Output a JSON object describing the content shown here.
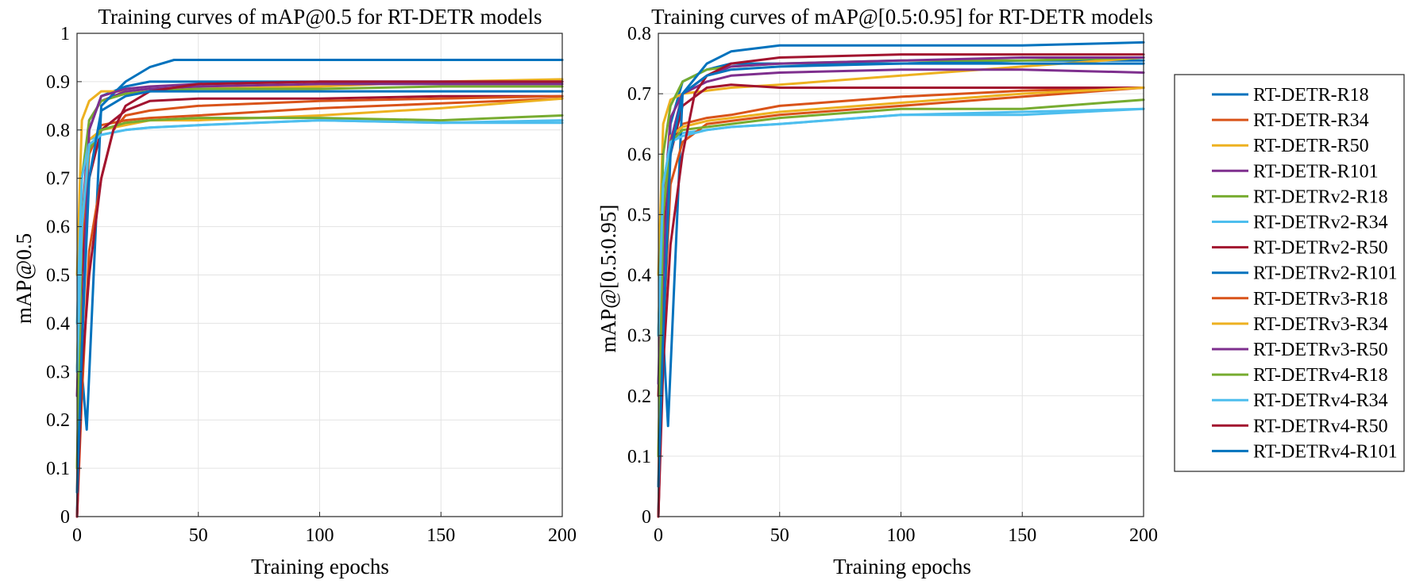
{
  "chart_data": [
    {
      "type": "line",
      "title": "Training curves of mAP@0.5 for RT-DETR models",
      "xlabel": "Training epochs",
      "ylabel": "mAP@0.5",
      "xlim": [
        0,
        200
      ],
      "ylim": [
        0,
        1
      ],
      "xticks": [
        "0",
        "50",
        "100",
        "150",
        "200"
      ],
      "yticks": [
        "0",
        "0.1",
        "0.2",
        "0.3",
        "0.4",
        "0.5",
        "0.6",
        "0.7",
        "0.8",
        "0.9",
        "1"
      ],
      "xtick_values": [
        0,
        50,
        100,
        150,
        200
      ],
      "ytick_values": [
        0,
        0.1,
        0.2,
        0.3,
        0.4,
        0.5,
        0.6,
        0.7,
        0.8,
        0.9,
        1.0
      ],
      "grid": true,
      "series": [
        {
          "name": "RT-DETR-R18",
          "color": "#0072BD",
          "x": [
            0,
            2,
            5,
            10,
            20,
            30,
            40,
            50,
            100,
            150,
            200
          ],
          "y": [
            0.0,
            0.5,
            0.8,
            0.87,
            0.89,
            0.9,
            0.9,
            0.9,
            0.9,
            0.9,
            0.9
          ]
        },
        {
          "name": "RT-DETR-R34",
          "color": "#D95319",
          "x": [
            0,
            2,
            5,
            10,
            20,
            30,
            50,
            100,
            150,
            200
          ],
          "y": [
            0.05,
            0.55,
            0.75,
            0.81,
            0.82,
            0.825,
            0.83,
            0.845,
            0.855,
            0.865
          ]
        },
        {
          "name": "RT-DETR-R50",
          "color": "#EDB120",
          "x": [
            0,
            2,
            5,
            10,
            20,
            30,
            50,
            100,
            150,
            200
          ],
          "y": [
            0.5,
            0.82,
            0.86,
            0.88,
            0.88,
            0.885,
            0.885,
            0.89,
            0.9,
            0.905
          ]
        },
        {
          "name": "RT-DETR-R101",
          "color": "#7E2F8E",
          "x": [
            0,
            2,
            5,
            10,
            20,
            30,
            50,
            100,
            150,
            200
          ],
          "y": [
            0.25,
            0.6,
            0.82,
            0.86,
            0.88,
            0.885,
            0.89,
            0.895,
            0.895,
            0.895
          ]
        },
        {
          "name": "RT-DETRv2-R18",
          "color": "#77AC30",
          "x": [
            0,
            2,
            5,
            10,
            20,
            30,
            50,
            100,
            150,
            200
          ],
          "y": [
            0.3,
            0.7,
            0.82,
            0.86,
            0.875,
            0.88,
            0.885,
            0.885,
            0.89,
            0.89
          ]
        },
        {
          "name": "RT-DETRv2-R34",
          "color": "#4DBEEE",
          "x": [
            0,
            2,
            5,
            10,
            20,
            30,
            50,
            100,
            150,
            200
          ],
          "y": [
            0.4,
            0.7,
            0.78,
            0.79,
            0.8,
            0.805,
            0.81,
            0.82,
            0.815,
            0.82
          ]
        },
        {
          "name": "RT-DETRv2-R50",
          "color": "#A2142F",
          "x": [
            0,
            2,
            5,
            10,
            20,
            30,
            50,
            100,
            150,
            200
          ],
          "y": [
            0.3,
            0.5,
            0.7,
            0.8,
            0.84,
            0.86,
            0.865,
            0.865,
            0.87,
            0.87
          ]
        },
        {
          "name": "RT-DETRv2-R101",
          "color": "#0072BD",
          "x": [
            0,
            2,
            4,
            10,
            20,
            30,
            40,
            50,
            100,
            150,
            200
          ],
          "y": [
            0.0,
            0.3,
            0.18,
            0.85,
            0.9,
            0.93,
            0.945,
            0.945,
            0.945,
            0.945,
            0.945
          ]
        },
        {
          "name": "RT-DETRv3-R18",
          "color": "#D95319",
          "x": [
            0,
            2,
            5,
            10,
            15,
            20,
            30,
            50,
            100,
            150,
            200
          ],
          "y": [
            0.0,
            0.25,
            0.55,
            0.7,
            0.8,
            0.83,
            0.84,
            0.85,
            0.86,
            0.865,
            0.87
          ]
        },
        {
          "name": "RT-DETRv3-R34",
          "color": "#EDB120",
          "x": [
            0,
            2,
            5,
            10,
            20,
            30,
            50,
            100,
            150,
            200
          ],
          "y": [
            0.1,
            0.6,
            0.78,
            0.8,
            0.81,
            0.82,
            0.82,
            0.83,
            0.845,
            0.865
          ]
        },
        {
          "name": "RT-DETRv3-R50",
          "color": "#7E2F8E",
          "x": [
            0,
            2,
            5,
            10,
            20,
            30,
            50,
            100,
            150,
            200
          ],
          "y": [
            0.25,
            0.35,
            0.8,
            0.87,
            0.885,
            0.89,
            0.895,
            0.9,
            0.9,
            0.9
          ]
        },
        {
          "name": "RT-DETRv4-R18",
          "color": "#77AC30",
          "x": [
            0,
            2,
            5,
            10,
            20,
            30,
            50,
            100,
            150,
            200
          ],
          "y": [
            0.1,
            0.6,
            0.76,
            0.8,
            0.815,
            0.82,
            0.825,
            0.825,
            0.82,
            0.83
          ]
        },
        {
          "name": "RT-DETRv4-R34",
          "color": "#4DBEEE",
          "x": [
            0,
            2,
            5,
            10,
            20,
            30,
            50,
            100,
            150,
            200
          ],
          "y": [
            0.3,
            0.6,
            0.77,
            0.79,
            0.8,
            0.805,
            0.81,
            0.82,
            0.815,
            0.815
          ]
        },
        {
          "name": "RT-DETRv4-R50",
          "color": "#A2142F",
          "x": [
            0,
            2,
            5,
            10,
            15,
            20,
            30,
            50,
            100,
            150,
            200
          ],
          "y": [
            0.0,
            0.3,
            0.5,
            0.7,
            0.8,
            0.85,
            0.88,
            0.895,
            0.9,
            0.9,
            0.9
          ]
        },
        {
          "name": "RT-DETRv4-R101",
          "color": "#0072BD",
          "x": [
            0,
            2,
            5,
            10,
            20,
            30,
            50,
            100,
            150,
            200
          ],
          "y": [
            0.05,
            0.35,
            0.7,
            0.84,
            0.87,
            0.88,
            0.88,
            0.88,
            0.88,
            0.88
          ]
        }
      ]
    },
    {
      "type": "line",
      "title": "Training curves of mAP@[0.5:0.95] for RT-DETR models",
      "xlabel": "Training epochs",
      "ylabel": "mAP@[0.5:0.95]",
      "xlim": [
        0,
        200
      ],
      "ylim": [
        0,
        0.8
      ],
      "xticks": [
        "0",
        "50",
        "100",
        "150",
        "200"
      ],
      "yticks": [
        "0",
        "0.1",
        "0.2",
        "0.3",
        "0.4",
        "0.5",
        "0.6",
        "0.7",
        "0.8"
      ],
      "xtick_values": [
        0,
        50,
        100,
        150,
        200
      ],
      "ytick_values": [
        0,
        0.1,
        0.2,
        0.3,
        0.4,
        0.5,
        0.6,
        0.7,
        0.8
      ],
      "grid": true,
      "series": [
        {
          "name": "RT-DETR-R18",
          "color": "#0072BD",
          "x": [
            0,
            2,
            5,
            10,
            20,
            30,
            50,
            100,
            150,
            200
          ],
          "y": [
            0.0,
            0.4,
            0.65,
            0.72,
            0.74,
            0.75,
            0.75,
            0.75,
            0.755,
            0.755
          ]
        },
        {
          "name": "RT-DETR-R34",
          "color": "#D95319",
          "x": [
            0,
            2,
            5,
            10,
            20,
            30,
            50,
            100,
            150,
            200
          ],
          "y": [
            0.05,
            0.45,
            0.62,
            0.65,
            0.66,
            0.665,
            0.68,
            0.695,
            0.705,
            0.71
          ]
        },
        {
          "name": "RT-DETR-R50",
          "color": "#EDB120",
          "x": [
            0,
            2,
            5,
            10,
            20,
            30,
            50,
            100,
            150,
            200
          ],
          "y": [
            0.4,
            0.65,
            0.69,
            0.7,
            0.705,
            0.71,
            0.715,
            0.73,
            0.745,
            0.76
          ]
        },
        {
          "name": "RT-DETR-R101",
          "color": "#7E2F8E",
          "x": [
            0,
            2,
            5,
            10,
            20,
            30,
            50,
            100,
            150,
            200
          ],
          "y": [
            0.22,
            0.5,
            0.66,
            0.7,
            0.72,
            0.73,
            0.735,
            0.74,
            0.74,
            0.735
          ]
        },
        {
          "name": "RT-DETRv2-R18",
          "color": "#77AC30",
          "x": [
            0,
            2,
            5,
            10,
            20,
            30,
            50,
            100,
            150,
            200
          ],
          "y": [
            0.3,
            0.6,
            0.68,
            0.72,
            0.74,
            0.745,
            0.75,
            0.755,
            0.755,
            0.76
          ]
        },
        {
          "name": "RT-DETRv2-R34",
          "color": "#4DBEEE",
          "x": [
            0,
            2,
            5,
            10,
            20,
            30,
            50,
            100,
            150,
            200
          ],
          "y": [
            0.3,
            0.55,
            0.62,
            0.635,
            0.64,
            0.645,
            0.65,
            0.665,
            0.665,
            0.675
          ]
        },
        {
          "name": "RT-DETRv2-R50",
          "color": "#A2142F",
          "x": [
            0,
            2,
            5,
            10,
            20,
            30,
            50,
            100,
            150,
            200
          ],
          "y": [
            0.2,
            0.45,
            0.6,
            0.68,
            0.71,
            0.715,
            0.71,
            0.71,
            0.71,
            0.71
          ]
        },
        {
          "name": "RT-DETRv2-R101",
          "color": "#0072BD",
          "x": [
            0,
            2,
            4,
            10,
            20,
            30,
            40,
            50,
            100,
            150,
            200
          ],
          "y": [
            0.0,
            0.3,
            0.15,
            0.7,
            0.75,
            0.77,
            0.775,
            0.78,
            0.78,
            0.78,
            0.785
          ]
        },
        {
          "name": "RT-DETRv3-R18",
          "color": "#D95319",
          "x": [
            0,
            2,
            5,
            10,
            20,
            30,
            50,
            100,
            150,
            200
          ],
          "y": [
            0.0,
            0.3,
            0.55,
            0.62,
            0.65,
            0.655,
            0.665,
            0.68,
            0.695,
            0.71
          ]
        },
        {
          "name": "RT-DETRv3-R34",
          "color": "#EDB120",
          "x": [
            0,
            2,
            5,
            10,
            20,
            30,
            50,
            100,
            150,
            200
          ],
          "y": [
            0.1,
            0.5,
            0.63,
            0.645,
            0.655,
            0.66,
            0.67,
            0.685,
            0.7,
            0.71
          ]
        },
        {
          "name": "RT-DETRv3-R50",
          "color": "#7E2F8E",
          "x": [
            0,
            2,
            5,
            10,
            20,
            30,
            50,
            100,
            150,
            200
          ],
          "y": [
            0.22,
            0.4,
            0.62,
            0.7,
            0.73,
            0.745,
            0.75,
            0.755,
            0.76,
            0.76
          ]
        },
        {
          "name": "RT-DETRv4-R18",
          "color": "#77AC30",
          "x": [
            0,
            2,
            5,
            10,
            20,
            30,
            50,
            100,
            150,
            200
          ],
          "y": [
            0.1,
            0.5,
            0.62,
            0.64,
            0.645,
            0.65,
            0.66,
            0.675,
            0.675,
            0.69
          ]
        },
        {
          "name": "RT-DETRv4-R34",
          "color": "#4DBEEE",
          "x": [
            0,
            2,
            5,
            10,
            20,
            30,
            50,
            100,
            150,
            200
          ],
          "y": [
            0.3,
            0.55,
            0.62,
            0.63,
            0.64,
            0.645,
            0.65,
            0.665,
            0.67,
            0.675
          ]
        },
        {
          "name": "RT-DETRv4-R50",
          "color": "#A2142F",
          "x": [
            0,
            2,
            5,
            10,
            15,
            20,
            30,
            50,
            100,
            150,
            200
          ],
          "y": [
            0.0,
            0.25,
            0.45,
            0.6,
            0.7,
            0.73,
            0.75,
            0.76,
            0.765,
            0.765,
            0.765
          ]
        },
        {
          "name": "RT-DETRv4-R101",
          "color": "#0072BD",
          "x": [
            0,
            2,
            5,
            10,
            20,
            30,
            50,
            100,
            150,
            200
          ],
          "y": [
            0.05,
            0.3,
            0.6,
            0.7,
            0.73,
            0.74,
            0.745,
            0.75,
            0.75,
            0.75
          ]
        }
      ]
    }
  ],
  "legend": {
    "placement": "right",
    "entries": [
      "RT-DETR-R18",
      "RT-DETR-R34",
      "RT-DETR-R50",
      "RT-DETR-R101",
      "RT-DETRv2-R18",
      "RT-DETRv2-R34",
      "RT-DETRv2-R50",
      "RT-DETRv2-R101",
      "RT-DETRv3-R18",
      "RT-DETRv3-R34",
      "RT-DETRv3-R50",
      "RT-DETRv4-R18",
      "RT-DETRv4-R34",
      "RT-DETRv4-R50",
      "RT-DETRv4-R101"
    ],
    "colors": [
      "#0072BD",
      "#D95319",
      "#EDB120",
      "#7E2F8E",
      "#77AC30",
      "#4DBEEE",
      "#A2142F",
      "#0072BD",
      "#D95319",
      "#EDB120",
      "#7E2F8E",
      "#77AC30",
      "#4DBEEE",
      "#A2142F",
      "#0072BD"
    ]
  }
}
